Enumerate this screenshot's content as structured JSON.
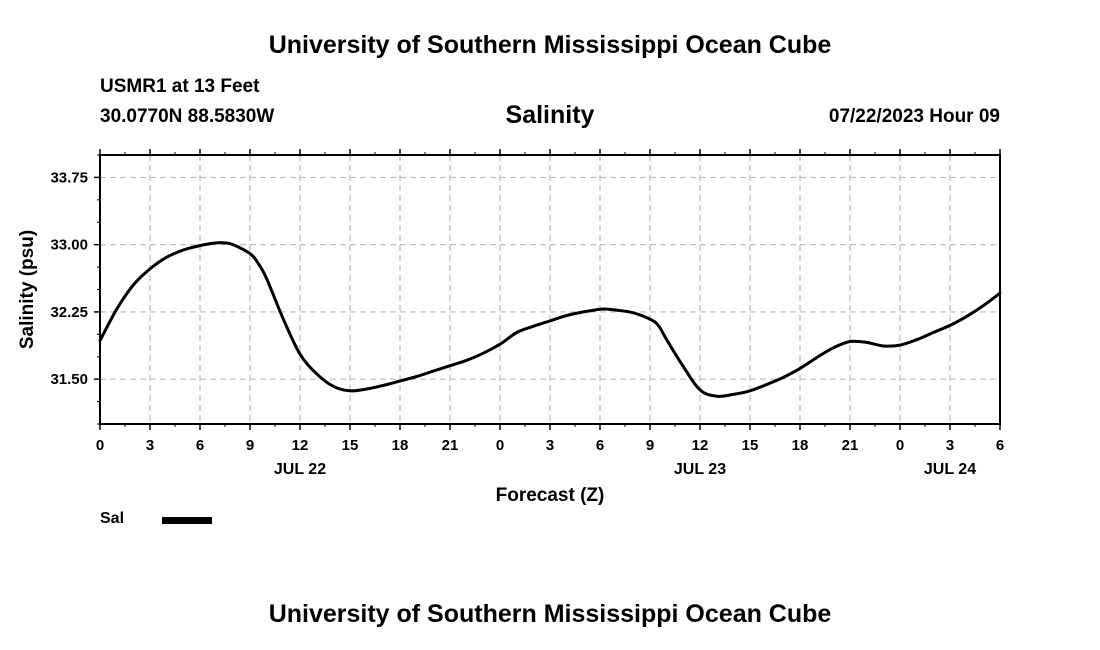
{
  "header": {
    "title": "University of Southern Mississippi Ocean Cube",
    "station": "USMR1 at 13 Feet",
    "coords": "30.0770N  88.5830W",
    "timestamp": "07/22/2023 Hour 09"
  },
  "footer": {
    "title": "University of Southern Mississippi Ocean Cube"
  },
  "chart_data": {
    "type": "line",
    "title": "Salinity",
    "xlabel": "Forecast (Z)",
    "ylabel": "Salinity (psu)",
    "xlim": [
      0,
      54
    ],
    "ylim": [
      31.0,
      34.0
    ],
    "yticks": [
      31.5,
      32.25,
      33.0,
      33.75
    ],
    "ytick_labels": [
      "31.50",
      "32.25",
      "33.00",
      "33.75"
    ],
    "xticks": [
      0,
      3,
      6,
      9,
      12,
      15,
      18,
      21,
      24,
      27,
      30,
      33,
      36,
      39,
      42,
      45,
      48,
      51,
      54
    ],
    "xtick_labels": [
      "0",
      "3",
      "6",
      "9",
      "12",
      "15",
      "18",
      "21",
      "0",
      "3",
      "6",
      "9",
      "12",
      "15",
      "18",
      "21",
      "0",
      "3",
      "6"
    ],
    "date_labels": [
      {
        "x": 12,
        "label": "JUL 22"
      },
      {
        "x": 36,
        "label": "JUL 23"
      },
      {
        "x": 51,
        "label": "JUL 24"
      }
    ],
    "grid": true,
    "legend": {
      "position": "bottom-left",
      "entries": [
        "Sal"
      ]
    },
    "line_color": "#000000",
    "series": [
      {
        "name": "Sal",
        "x": [
          0,
          1,
          2,
          3,
          4,
          5,
          6,
          7,
          7.5,
          8,
          9,
          9.5,
          10,
          11,
          12,
          13,
          14,
          15,
          16,
          17,
          18,
          19,
          20,
          21,
          22,
          23,
          24,
          25,
          26,
          27,
          28,
          29,
          30,
          30.5,
          31,
          32,
          33,
          33.5,
          34,
          35,
          36,
          37,
          38,
          39,
          40,
          41,
          42,
          43,
          44,
          45,
          46,
          47,
          48,
          49,
          50,
          51,
          52,
          53,
          54
        ],
        "y": [
          31.93,
          32.28,
          32.55,
          32.73,
          32.86,
          32.94,
          32.99,
          33.02,
          33.02,
          33.0,
          32.9,
          32.79,
          32.62,
          32.17,
          31.78,
          31.56,
          31.42,
          31.37,
          31.39,
          31.43,
          31.48,
          31.53,
          31.59,
          31.65,
          31.71,
          31.79,
          31.89,
          32.02,
          32.09,
          32.15,
          32.21,
          32.25,
          32.28,
          32.28,
          32.27,
          32.24,
          32.17,
          32.1,
          31.94,
          31.64,
          31.38,
          31.31,
          31.33,
          31.37,
          31.44,
          31.52,
          31.62,
          31.74,
          31.85,
          31.92,
          31.91,
          31.87,
          31.88,
          31.94,
          32.02,
          32.1,
          32.2,
          32.32,
          32.46
        ]
      }
    ]
  }
}
